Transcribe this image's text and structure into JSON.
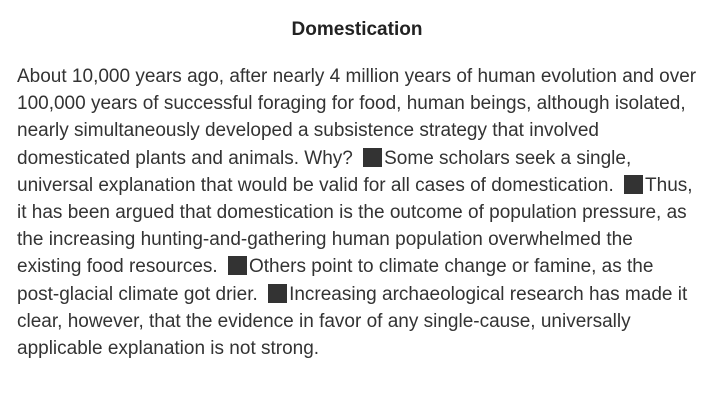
{
  "title": "Domestication",
  "passage": {
    "segments": [
      "About 10,000 years ago, after nearly 4 million years of human evolution and over 100,000 years of successful foraging for food, human beings, although isolated, nearly simultaneously developed a subsistence strategy that involved domesticated plants and animals. Why?",
      "Some scholars seek a single, universal explanation that would be valid for all cases of domestication.",
      "Thus, it has been argued that domestication is the outcome of population pressure, as the increasing hunting-and-gathering human population overwhelmed the existing food resources.",
      "Others point to climate change or famine, as the post-glacial climate got drier.",
      "Increasing archaeological research has made it clear, however, that the evidence in favor of any single-cause, universally applicable explanation is not strong."
    ]
  },
  "insert_markers": [
    {
      "icon": "black-square-icon",
      "color": "#333333"
    },
    {
      "icon": "black-square-icon",
      "color": "#333333"
    },
    {
      "icon": "black-square-icon",
      "color": "#333333"
    },
    {
      "icon": "black-square-icon",
      "color": "#333333"
    }
  ]
}
